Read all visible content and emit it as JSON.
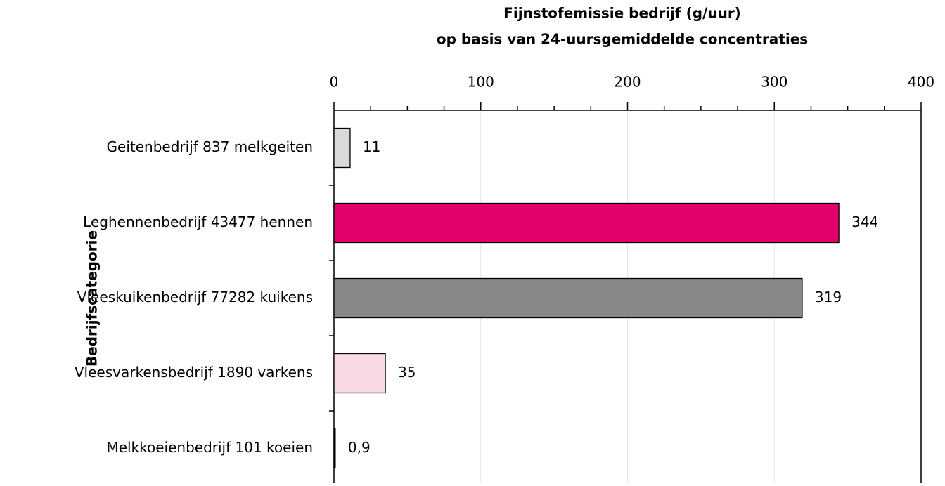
{
  "chart_data": {
    "type": "barh",
    "title": "Fijnstofemissie bedrijf (g/uur)",
    "subtitle": "op basis van 24-uursgemiddelde concentraties",
    "y_label": "Bedrijfscategorie",
    "categories": [
      "Geitenbedrijf 837 melkgeiten",
      "Leghennenbedrijf 43477 hennen",
      "Vleeskuikenbedrijf 77282 kuikens",
      "Vleesvarkensbedrijf 1890 varkens",
      "Melkkoeienbedrijf 101 koeien"
    ],
    "values": [
      11,
      344,
      319,
      35,
      0.9
    ],
    "value_labels": [
      "11",
      "344",
      "319",
      "35",
      "0,9"
    ],
    "colors": [
      "#d9d9d9",
      "#e2006a",
      "#878787",
      "#f9d9e6",
      "#000000"
    ],
    "xlim": [
      0,
      400
    ],
    "xticks": [
      0,
      100,
      200,
      300,
      400
    ],
    "xminorticks": [
      25,
      50,
      75,
      125,
      150,
      175,
      225,
      250,
      275,
      325,
      350,
      375
    ],
    "xaxis_position": "top",
    "grid": true
  }
}
